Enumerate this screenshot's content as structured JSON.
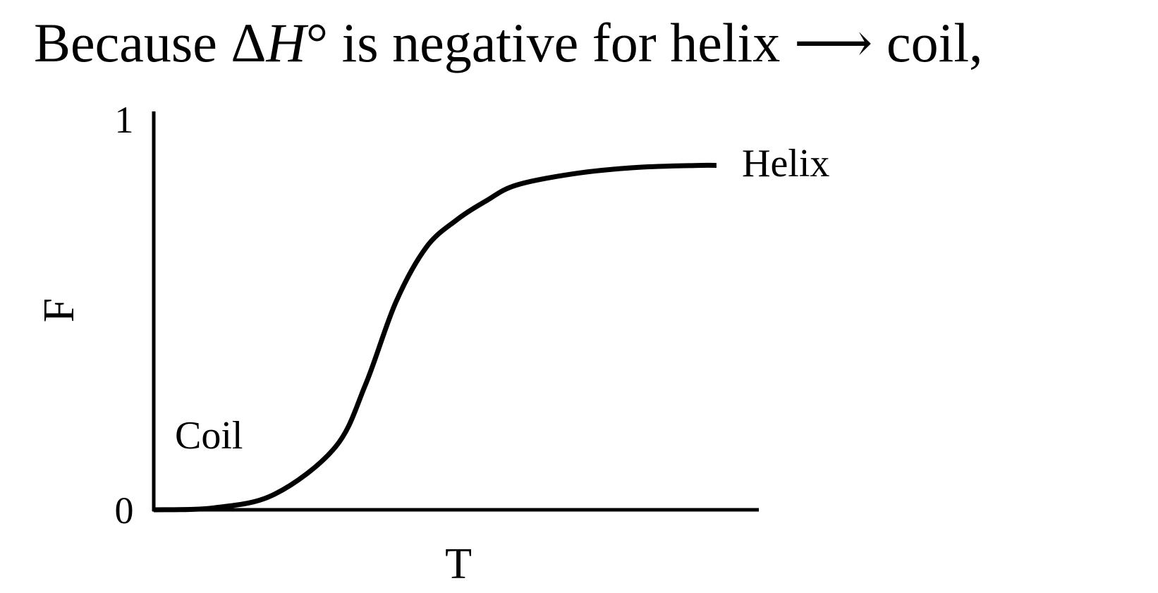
{
  "heading": {
    "prefix": "Because Δ",
    "italic": "H",
    "suffix": "° is negative for helix ⟶ coil,"
  },
  "chart_data": {
    "type": "line",
    "title": "",
    "xlabel": "T",
    "ylabel": "F",
    "ylim": [
      0,
      1
    ],
    "yticks": [
      "0",
      "1"
    ],
    "grid": false,
    "legend": "none",
    "annotations": [
      {
        "text": "Coil",
        "x": 0.04,
        "y": 0.19
      },
      {
        "text": "Helix",
        "x": 0.97,
        "y": 0.88
      }
    ],
    "series": [
      {
        "x": [
          0.0,
          0.1,
          0.2,
          0.3,
          0.35,
          0.4,
          0.45,
          0.5,
          0.55,
          0.6,
          0.7,
          0.8,
          0.9,
          0.93
        ],
        "y": [
          0.0,
          0.005,
          0.04,
          0.16,
          0.32,
          0.53,
          0.67,
          0.74,
          0.79,
          0.83,
          0.86,
          0.875,
          0.88,
          0.88
        ]
      }
    ],
    "colors": {
      "line": "#000000",
      "axis": "#000000"
    }
  }
}
